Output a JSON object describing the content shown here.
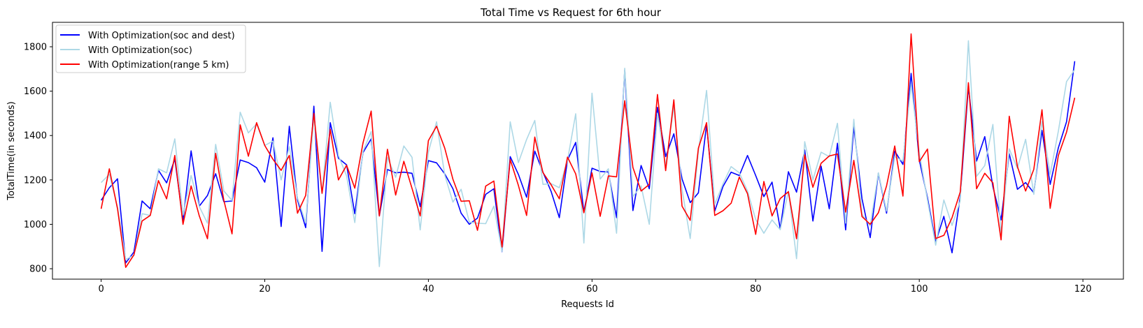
{
  "chart_data": {
    "type": "line",
    "title": "Total Time vs Request for 6th hour",
    "xlabel": "Requests Id",
    "ylabel": "TotalTime(in seconds)",
    "xlim": [
      -5.95,
      124.95
    ],
    "ylim": [
      753,
      1910
    ],
    "xticks": [
      0,
      20,
      40,
      60,
      80,
      100,
      120
    ],
    "yticks": [
      800,
      1000,
      1200,
      1400,
      1600,
      1800
    ],
    "legend_position": "upper-left",
    "grid": false,
    "series": [
      {
        "name": "With Optimization(soc and dest)",
        "color": "#0000ff",
        "values": [
          1108,
          1165,
          1205,
          826,
          875,
          1105,
          1070,
          1243,
          1187,
          1294,
          1018,
          1331,
          1082,
          1130,
          1228,
          1102,
          1105,
          1290,
          1278,
          1255,
          1190,
          1390,
          990,
          1442,
          1110,
          985,
          1532,
          878,
          1458,
          1298,
          1268,
          1048,
          1323,
          1385,
          1038,
          1247,
          1232,
          1235,
          1230,
          1080,
          1287,
          1277,
          1227,
          1160,
          1050,
          1000,
          1028,
          1135,
          1160,
          877,
          1305,
          1225,
          1122,
          1330,
          1235,
          1148,
          1030,
          1290,
          1369,
          1055,
          1253,
          1238,
          1236,
          1030,
          1695,
          1062,
          1265,
          1160,
          1527,
          1305,
          1408,
          1205,
          1098,
          1142,
          1450,
          1060,
          1170,
          1235,
          1220,
          1310,
          1220,
          1125,
          1190,
          980,
          1237,
          1145,
          1335,
          1015,
          1262,
          1070,
          1365,
          975,
          1440,
          1115,
          940,
          1230,
          1050,
          1330,
          1270,
          1680,
          1290,
          1120,
          920,
          1036,
          872,
          1124,
          1620,
          1285,
          1395,
          1170,
          1020,
          1318,
          1158,
          1188,
          1142,
          1423,
          1180,
          1345,
          1462,
          1735
        ]
      },
      {
        "name": "With Optimization(soc)",
        "color": "#add8e6",
        "values": [
          1188,
          1225,
          1078,
          842,
          860,
          1048,
          1040,
          1250,
          1232,
          1385,
          1042,
          1220,
          1080,
          1005,
          1360,
          1150,
          1108,
          1505,
          1412,
          1453,
          1355,
          1375,
          1200,
          1350,
          1118,
          1008,
          1485,
          1138,
          1550,
          1310,
          1218,
          1008,
          1328,
          1418,
          810,
          1302,
          1212,
          1353,
          1302,
          975,
          1325,
          1462,
          1222,
          1100,
          1158,
          1010,
          1005,
          1003,
          1082,
          878,
          1462,
          1278,
          1382,
          1468,
          1180,
          1183,
          1165,
          1288,
          1498,
          916,
          1591,
          1204,
          1250,
          960,
          1703,
          1125,
          1173,
          1000,
          1500,
          1262,
          1530,
          1158,
          936,
          1330,
          1603,
          1090,
          1182,
          1260,
          1232,
          1150,
          1022,
          960,
          1020,
          976,
          1150,
          845,
          1372,
          1200,
          1325,
          1305,
          1455,
          1005,
          1473,
          1045,
          993,
          1232,
          1060,
          1305,
          1285,
          1632,
          1323,
          1108,
          906,
          1110,
          995,
          1105,
          1827,
          1216,
          1265,
          1450,
          960,
          1340,
          1252,
          1383,
          1135,
          1463,
          1225,
          1420,
          1643,
          1697
        ]
      },
      {
        "name": "With Optimization(range 5 km)",
        "color": "#ff0000",
        "values": [
          1070,
          1250,
          1070,
          806,
          862,
          1015,
          1040,
          1197,
          1115,
          1310,
          1000,
          1173,
          1038,
          935,
          1320,
          1108,
          957,
          1448,
          1307,
          1458,
          1355,
          1293,
          1243,
          1310,
          1050,
          1130,
          1500,
          1140,
          1428,
          1200,
          1266,
          1163,
          1366,
          1510,
          1038,
          1338,
          1132,
          1284,
          1162,
          1038,
          1377,
          1442,
          1343,
          1203,
          1104,
          1106,
          973,
          1172,
          1195,
          898,
          1292,
          1175,
          1040,
          1393,
          1233,
          1178,
          1115,
          1303,
          1227,
          1052,
          1232,
          1036,
          1218,
          1214,
          1557,
          1256,
          1150,
          1180,
          1585,
          1242,
          1561,
          1082,
          1018,
          1343,
          1458,
          1040,
          1061,
          1095,
          1213,
          1138,
          955,
          1193,
          1038,
          1116,
          1147,
          935,
          1313,
          1167,
          1275,
          1308,
          1317,
          1055,
          1288,
          1035,
          1000,
          1052,
          1173,
          1353,
          1127,
          1858,
          1282,
          1339,
          936,
          950,
          1030,
          1145,
          1638,
          1160,
          1230,
          1187,
          930,
          1487,
          1260,
          1150,
          1248,
          1516,
          1072,
          1310,
          1415,
          1570
        ]
      }
    ]
  }
}
